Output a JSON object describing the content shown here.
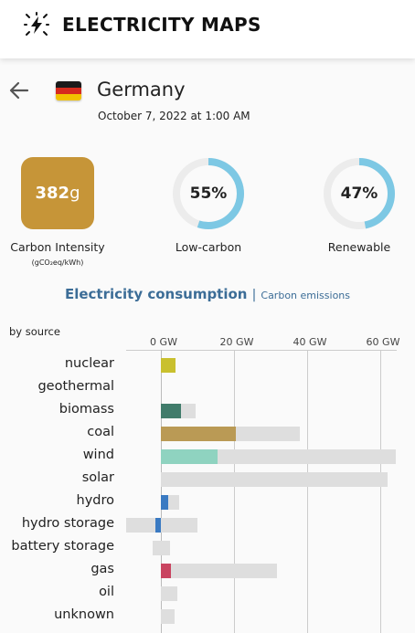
{
  "header": {
    "app_name": "ELECTRICITY MAPS",
    "logo_icon": "lightning-logo-icon"
  },
  "zone": {
    "name": "Germany",
    "datetime": "October 7, 2022 at 1:00 AM",
    "flag_colors": [
      "#1a1a1a",
      "#d62b1e",
      "#f2c200"
    ]
  },
  "metrics": {
    "carbon_intensity": {
      "value": "382",
      "unit": "g",
      "label": "Carbon Intensity",
      "sublabel": "(gCO₂eq/kWh)",
      "color": "#c69538"
    },
    "low_carbon": {
      "value": "55%",
      "fraction": 0.55,
      "label": "Low-carbon",
      "color": "#7dc8e4"
    },
    "renewable": {
      "value": "47%",
      "fraction": 0.47,
      "label": "Renewable",
      "color": "#7dc8e4"
    }
  },
  "tabs": {
    "active": "Electricity consumption",
    "separator": "|",
    "inactive": "Carbon emissions"
  },
  "chart_data": {
    "type": "bar",
    "title": "",
    "ylabel": "by source",
    "xlabel": "",
    "x_ticks": [
      "0 GW",
      "20 GW",
      "40 GW",
      "60 GW"
    ],
    "xlim": [
      -10,
      64
    ],
    "unit": "GW",
    "categories": [
      "nuclear",
      "geothermal",
      "biomass",
      "coal",
      "wind",
      "solar",
      "hydro",
      "hydro storage",
      "battery storage",
      "gas",
      "oil",
      "unknown"
    ],
    "series": [
      {
        "role": "production",
        "values": [
          4.1,
          0,
          5.6,
          20.4,
          15.4,
          0,
          1.9,
          -1.5,
          0,
          2.7,
          0,
          0
        ]
      },
      {
        "role": "capacity",
        "values": [
          [
            0,
            4.1
          ],
          null,
          [
            0,
            9.6
          ],
          [
            0,
            37.9
          ],
          [
            0,
            64.2
          ],
          [
            0,
            61.9
          ],
          [
            0,
            5.0
          ],
          [
            -9.4,
            9.9
          ],
          [
            -2.3,
            2.4
          ],
          [
            0,
            31.8
          ],
          [
            0,
            4.6
          ],
          [
            0,
            3.8
          ]
        ]
      }
    ],
    "colors": {
      "nuclear": "#c9c02e",
      "biomass": "#417c6b",
      "coal": "#ba9a55",
      "wind": "#8fd3c0",
      "hydro": "#3a7ac2",
      "hydro storage": "#3a7ac2",
      "gas": "#c94460",
      "capacity": "#dedede"
    }
  }
}
